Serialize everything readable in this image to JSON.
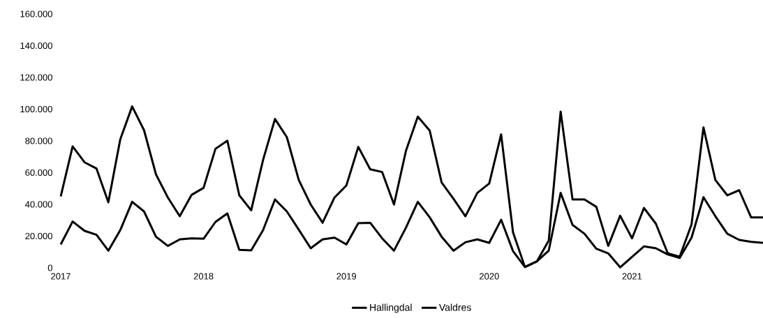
{
  "chart_data": {
    "type": "line",
    "categories": [
      "2017",
      null,
      null,
      null,
      null,
      null,
      null,
      null,
      null,
      null,
      null,
      null,
      "2018",
      null,
      null,
      null,
      null,
      null,
      null,
      null,
      null,
      null,
      null,
      null,
      "2019",
      null,
      null,
      null,
      null,
      null,
      null,
      null,
      null,
      null,
      null,
      null,
      "2020",
      null,
      null,
      null,
      null,
      null,
      null,
      null,
      null,
      null,
      null,
      null,
      "2021",
      null,
      null,
      null,
      null,
      null,
      null,
      null,
      null,
      null,
      null,
      null
    ],
    "series": [
      {
        "name": "Hallingdal",
        "color": "#000000",
        "values": [
          45000,
          76500,
          66500,
          62600,
          41300,
          80900,
          101700,
          86700,
          58900,
          44300,
          32500,
          46000,
          50400,
          75000,
          80100,
          45700,
          36200,
          68000,
          93800,
          82300,
          55300,
          39900,
          28400,
          44300,
          51900,
          76200,
          62100,
          60400,
          39900,
          73600,
          95300,
          86500,
          53800,
          43500,
          32500,
          47200,
          53100,
          84100,
          22300,
          500,
          4000,
          17100,
          98500,
          43100,
          43100,
          38400,
          13800,
          32800,
          18600,
          37700,
          27800,
          9100,
          6900,
          27400,
          88500,
          55300,
          45700,
          48900,
          31800,
          31800
        ]
      },
      {
        "name": "Valdres",
        "color": "#000000",
        "values": [
          14700,
          29200,
          23300,
          20800,
          10800,
          23700,
          41600,
          35500,
          19600,
          13800,
          17900,
          18600,
          18300,
          28900,
          34300,
          11300,
          11000,
          23700,
          43100,
          35500,
          24000,
          12300,
          17900,
          19000,
          14700,
          28100,
          28400,
          18600,
          10800,
          25200,
          41600,
          31800,
          19600,
          10800,
          16100,
          17900,
          15700,
          30300,
          10500,
          500,
          4000,
          10800,
          47200,
          27000,
          21500,
          12000,
          9100,
          300,
          6900,
          13500,
          12300,
          8400,
          6200,
          19000,
          44500,
          32500,
          21500,
          17600,
          16400,
          15700
        ]
      }
    ],
    "ylim": [
      0,
      160000
    ],
    "yticks": [
      {
        "value": 0,
        "label": "0"
      },
      {
        "value": 20000,
        "label": "20.000"
      },
      {
        "value": 40000,
        "label": "40.000"
      },
      {
        "value": 60000,
        "label": "60.000"
      },
      {
        "value": 80000,
        "label": "80.000"
      },
      {
        "value": 100000,
        "label": "100.000"
      },
      {
        "value": 120000,
        "label": "120.000"
      },
      {
        "value": 140000,
        "label": "140.000"
      },
      {
        "value": 160000,
        "label": "160.000"
      }
    ],
    "legend": "bottom",
    "marker": "none",
    "line_style": "solid"
  }
}
